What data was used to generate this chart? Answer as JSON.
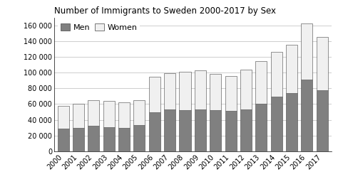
{
  "title": "Number of Immigrants to Sweden 2000-2017 by Sex",
  "years": [
    2000,
    2001,
    2002,
    2003,
    2004,
    2005,
    2006,
    2007,
    2008,
    2009,
    2010,
    2011,
    2012,
    2013,
    2014,
    2015,
    2016,
    2017
  ],
  "men": [
    29000,
    30000,
    32000,
    31000,
    30000,
    33000,
    50000,
    53000,
    52000,
    53000,
    52000,
    51000,
    53000,
    60000,
    69000,
    74000,
    91000,
    78000
  ],
  "women": [
    29000,
    30000,
    33000,
    33000,
    32000,
    32000,
    45000,
    46000,
    49000,
    50000,
    46000,
    45000,
    51000,
    55000,
    57000,
    61000,
    71000,
    67000
  ],
  "men_color": "#808080",
  "women_color": "#f0f0f0",
  "bar_edge_color": "#444444",
  "ylim": [
    0,
    170000
  ],
  "yticks": [
    0,
    20000,
    40000,
    60000,
    80000,
    100000,
    120000,
    140000,
    160000
  ],
  "ytick_labels": [
    "0",
    "20 000",
    "40 000",
    "60 000",
    "80 000",
    "100 000",
    "120 000",
    "140 000",
    "160 000"
  ],
  "legend_men": "Men",
  "legend_women": "Women",
  "background_color": "#ffffff",
  "grid_color": "#bbbbbb",
  "title_fontsize": 8.5,
  "tick_fontsize": 7,
  "legend_fontsize": 8
}
